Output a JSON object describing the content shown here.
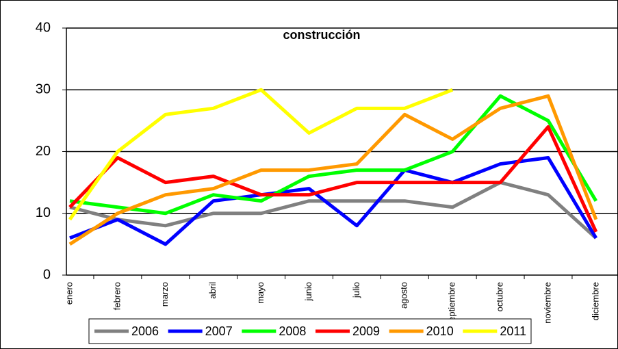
{
  "chart_data": {
    "type": "line",
    "title": "construcción",
    "categories": [
      "enero",
      "febrero",
      "marzo",
      "abril",
      "mayo",
      "junio",
      "julio",
      "agosto",
      "septiembre",
      "octubre",
      "noviembre",
      "diciembre"
    ],
    "series": [
      {
        "name": "2006",
        "color": "#808080",
        "values": [
          11,
          9,
          8,
          10,
          10,
          12,
          12,
          12,
          11,
          15,
          13,
          6
        ]
      },
      {
        "name": "2007",
        "color": "#0000ff",
        "values": [
          6,
          9,
          5,
          12,
          13,
          14,
          8,
          17,
          15,
          18,
          19,
          6
        ]
      },
      {
        "name": "2008",
        "color": "#00ff00",
        "values": [
          12,
          11,
          10,
          13,
          12,
          16,
          17,
          17,
          20,
          29,
          25,
          12
        ]
      },
      {
        "name": "2009",
        "color": "#ff0000",
        "values": [
          11,
          19,
          15,
          16,
          13,
          13,
          15,
          15,
          15,
          15,
          24,
          7
        ]
      },
      {
        "name": "2010",
        "color": "#ff9900",
        "values": [
          5,
          10,
          13,
          14,
          17,
          17,
          18,
          26,
          22,
          27,
          29,
          9
        ]
      },
      {
        "name": "2011",
        "color": "#ffff00",
        "values": [
          9,
          20,
          26,
          27,
          30,
          23,
          27,
          27,
          30,
          null,
          null,
          null
        ]
      }
    ],
    "ylim": [
      0,
      40
    ],
    "yticks": [
      0,
      10,
      20,
      30,
      40
    ],
    "grid": true
  }
}
